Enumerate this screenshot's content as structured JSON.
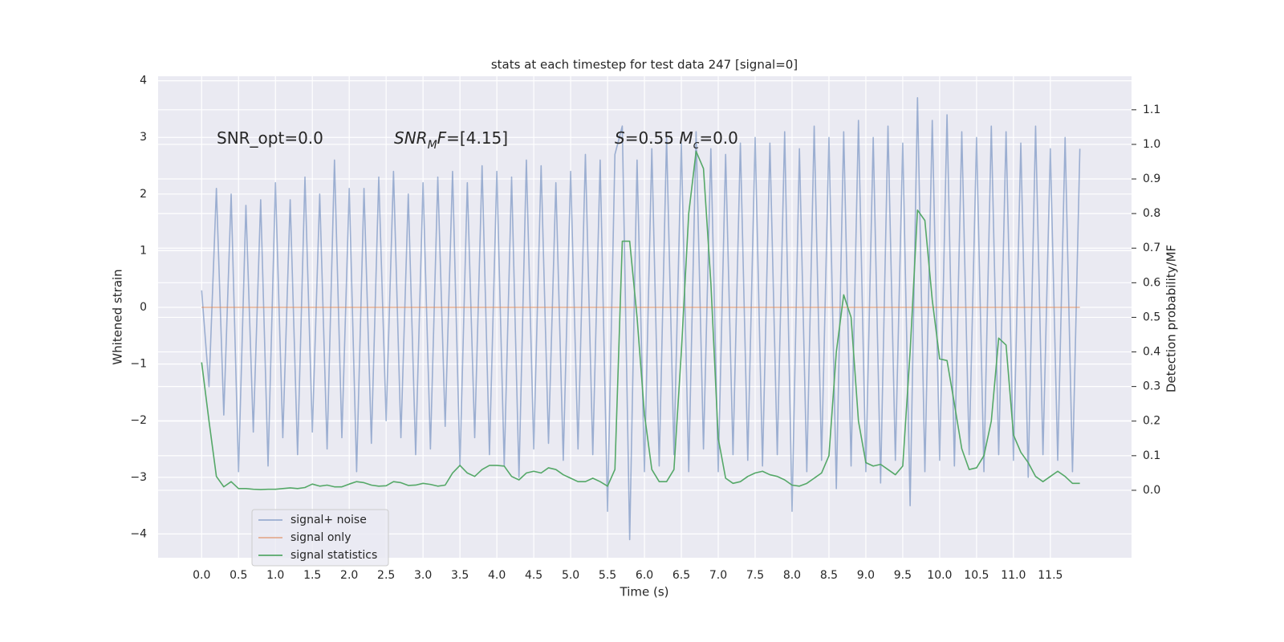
{
  "chart_data": {
    "type": "line",
    "title": "stats at each timestep for test data 247 [signal=0]",
    "xlabel": "Time (s)",
    "ylabel": "Whitened strain",
    "y2label": "Detection probability/MF",
    "grid": true,
    "legend": "lower left",
    "xlim": [
      -0.59,
      12.6
    ],
    "ylim": [
      -4.42,
      4.08
    ],
    "y2lim": [
      -0.195,
      1.197
    ],
    "xticks": [
      {
        "value": 0,
        "label": "0.0"
      },
      0.5,
      {
        "value": 1,
        "label": "1.0"
      },
      1.5,
      {
        "value": 2,
        "label": "2.0"
      },
      2.5,
      {
        "value": 3,
        "label": "3.0"
      },
      3.5,
      {
        "value": 4,
        "label": "4.0"
      },
      4.5,
      {
        "value": 5,
        "label": "5.0"
      },
      5.5,
      {
        "value": 6,
        "label": "6.0"
      },
      6.5,
      {
        "value": 7,
        "label": "7.0"
      },
      7.5,
      {
        "value": 8,
        "label": "8.0"
      },
      8.5,
      {
        "value": 9,
        "label": "9.0"
      },
      9.5,
      {
        "value": 10,
        "label": "10.0"
      },
      10.5,
      {
        "value": 11,
        "label": "11.0"
      },
      11.5
    ],
    "yticks": [
      {
        "value": -4,
        "label": "−4"
      },
      {
        "value": -3,
        "label": "−3"
      },
      {
        "value": -2,
        "label": "−2"
      },
      {
        "value": -1,
        "label": "−1"
      },
      0,
      1,
      2,
      3,
      4
    ],
    "y2ticks": [
      {
        "value": 0,
        "label": "0.0"
      },
      0.1,
      0.2,
      0.3,
      0.4,
      0.5,
      0.6,
      0.7,
      0.8,
      0.9,
      {
        "value": 1,
        "label": "1.0"
      },
      1.1
    ],
    "annotations": [
      [
        {
          "text": "SNR_opt=0.0"
        }
      ],
      [
        {
          "text": "SNR",
          "style": "italic"
        },
        {
          "text": "M",
          "style": "sub"
        },
        {
          "text": "F",
          "style": "italic"
        },
        {
          "text": "=[4.15]"
        }
      ],
      [
        {
          "text": "S",
          "style": "italic"
        },
        {
          "text": "=0.55   "
        },
        {
          "text": "M",
          "style": "italic"
        },
        {
          "text": "c",
          "style": "sub"
        },
        {
          "text": "=0.0"
        }
      ]
    ],
    "x": [
      0,
      0.1,
      0.2,
      0.3,
      0.4,
      0.5,
      0.6,
      0.7,
      0.8,
      0.9,
      1,
      1.1,
      1.2,
      1.3,
      1.4,
      1.5,
      1.6,
      1.7,
      1.8,
      1.9,
      2,
      2.1,
      2.2,
      2.3,
      2.4,
      2.5,
      2.6,
      2.7,
      2.8,
      2.9,
      3,
      3.1,
      3.2,
      3.3,
      3.4,
      3.5,
      3.6,
      3.7,
      3.8,
      3.9,
      4,
      4.1,
      4.2,
      4.3,
      4.4,
      4.5,
      4.6,
      4.7,
      4.8,
      4.9,
      5,
      5.1,
      5.2,
      5.3,
      5.4,
      5.5,
      5.6,
      5.7,
      5.8,
      5.9,
      6,
      6.1,
      6.2,
      6.3,
      6.4,
      6.5,
      6.6,
      6.7,
      6.8,
      6.9,
      7,
      7.1,
      7.2,
      7.3,
      7.4,
      7.5,
      7.6,
      7.7,
      7.8,
      7.9,
      8,
      8.1,
      8.2,
      8.3,
      8.4,
      8.5,
      8.6,
      8.7,
      8.8,
      8.9,
      9,
      9.1,
      9.2,
      9.3,
      9.4,
      9.5,
      9.6,
      9.7,
      9.8,
      9.9,
      10,
      10.1,
      10.2,
      10.3,
      10.4,
      10.5,
      10.6,
      10.7,
      10.8,
      10.9,
      11,
      11.1,
      11.2,
      11.3,
      11.4,
      11.5,
      11.6,
      11.7,
      11.8,
      11.9
    ],
    "series": [
      {
        "name": "signal+ noise",
        "color": "#4c72b0",
        "opacity": 0.5,
        "values": [
          0.3,
          -1.4,
          2.1,
          -1.9,
          2.0,
          -2.9,
          1.8,
          -2.2,
          1.9,
          -2.8,
          2.2,
          -2.3,
          1.9,
          -2.6,
          2.3,
          -2.2,
          2.0,
          -2.5,
          2.6,
          -2.3,
          2.1,
          -2.9,
          2.1,
          -2.4,
          2.3,
          -2.0,
          2.4,
          -2.3,
          2.0,
          -2.6,
          2.2,
          -2.5,
          2.3,
          -2.1,
          2.4,
          -2.8,
          2.2,
          -2.3,
          2.5,
          -2.6,
          2.4,
          -2.8,
          2.3,
          -3.0,
          2.6,
          -2.5,
          2.5,
          -2.4,
          2.2,
          -2.7,
          2.4,
          -2.5,
          2.7,
          -2.6,
          2.6,
          -3.6,
          2.7,
          3.2,
          -4.1,
          2.6,
          -2.9,
          2.8,
          -2.8,
          3.0,
          -2.6,
          2.9,
          -2.9,
          3.1,
          -2.5,
          2.8,
          -2.9,
          2.7,
          -2.6,
          2.9,
          -2.7,
          3.0,
          -2.8,
          2.9,
          -2.6,
          3.1,
          -3.6,
          2.8,
          -2.9,
          3.2,
          -2.7,
          3.0,
          -3.2,
          3.1,
          -2.8,
          3.3,
          -2.9,
          3.0,
          -3.1,
          3.2,
          -2.7,
          2.9,
          -3.5,
          3.7,
          -2.9,
          3.3,
          -2.7,
          3.4,
          -2.8,
          3.1,
          -2.6,
          3.0,
          -2.9,
          3.2,
          -2.6,
          3.1,
          -2.7,
          2.9,
          -3.0,
          3.2,
          -2.6,
          2.8,
          -2.7,
          3.0,
          -2.9,
          2.8
        ]
      },
      {
        "name": "signal only",
        "color": "#dd8452",
        "opacity": 0.6,
        "values": [
          0,
          0,
          0,
          0,
          0,
          0,
          0,
          0,
          0,
          0,
          0,
          0,
          0,
          0,
          0,
          0,
          0,
          0,
          0,
          0,
          0,
          0,
          0,
          0,
          0,
          0,
          0,
          0,
          0,
          0,
          0,
          0,
          0,
          0,
          0,
          0,
          0,
          0,
          0,
          0,
          0,
          0,
          0,
          0,
          0,
          0,
          0,
          0,
          0,
          0,
          0,
          0,
          0,
          0,
          0,
          0,
          0,
          0,
          0,
          0,
          0,
          0,
          0,
          0,
          0,
          0,
          0,
          0,
          0,
          0,
          0,
          0,
          0,
          0,
          0,
          0,
          0,
          0,
          0,
          0,
          0,
          0,
          0,
          0,
          0,
          0,
          0,
          0,
          0,
          0,
          0,
          0,
          0,
          0,
          0,
          0,
          0,
          0,
          0,
          0,
          0,
          0,
          0,
          0,
          0,
          0,
          0,
          0,
          0,
          0,
          0,
          0,
          0,
          0,
          0,
          0,
          0,
          0,
          0,
          0
        ]
      },
      {
        "name": "signal statistics",
        "color": "#55a868",
        "opacity": 1,
        "axis": "y2",
        "values": [
          0.37,
          0.2,
          0.04,
          0.01,
          0.025,
          0.005,
          0.005,
          0.003,
          0.002,
          0.003,
          0.003,
          0.005,
          0.007,
          0.005,
          0.008,
          0.018,
          0.012,
          0.015,
          0.01,
          0.01,
          0.018,
          0.025,
          0.022,
          0.015,
          0.012,
          0.013,
          0.025,
          0.022,
          0.014,
          0.015,
          0.02,
          0.017,
          0.012,
          0.015,
          0.05,
          0.072,
          0.05,
          0.04,
          0.06,
          0.072,
          0.072,
          0.07,
          0.04,
          0.03,
          0.05,
          0.055,
          0.05,
          0.065,
          0.06,
          0.045,
          0.035,
          0.025,
          0.025,
          0.035,
          0.025,
          0.012,
          0.06,
          0.72,
          0.72,
          0.5,
          0.22,
          0.06,
          0.025,
          0.025,
          0.06,
          0.4,
          0.8,
          0.98,
          0.93,
          0.6,
          0.15,
          0.035,
          0.02,
          0.025,
          0.04,
          0.05,
          0.055,
          0.045,
          0.04,
          0.03,
          0.015,
          0.012,
          0.02,
          0.035,
          0.05,
          0.1,
          0.4,
          0.565,
          0.5,
          0.2,
          0.08,
          0.07,
          0.075,
          0.06,
          0.045,
          0.07,
          0.4,
          0.81,
          0.78,
          0.55,
          0.38,
          0.375,
          0.25,
          0.12,
          0.06,
          0.065,
          0.1,
          0.2,
          0.44,
          0.42,
          0.16,
          0.11,
          0.08,
          0.04,
          0.025,
          0.04,
          0.055,
          0.04,
          0.02,
          0.02
        ]
      }
    ]
  }
}
